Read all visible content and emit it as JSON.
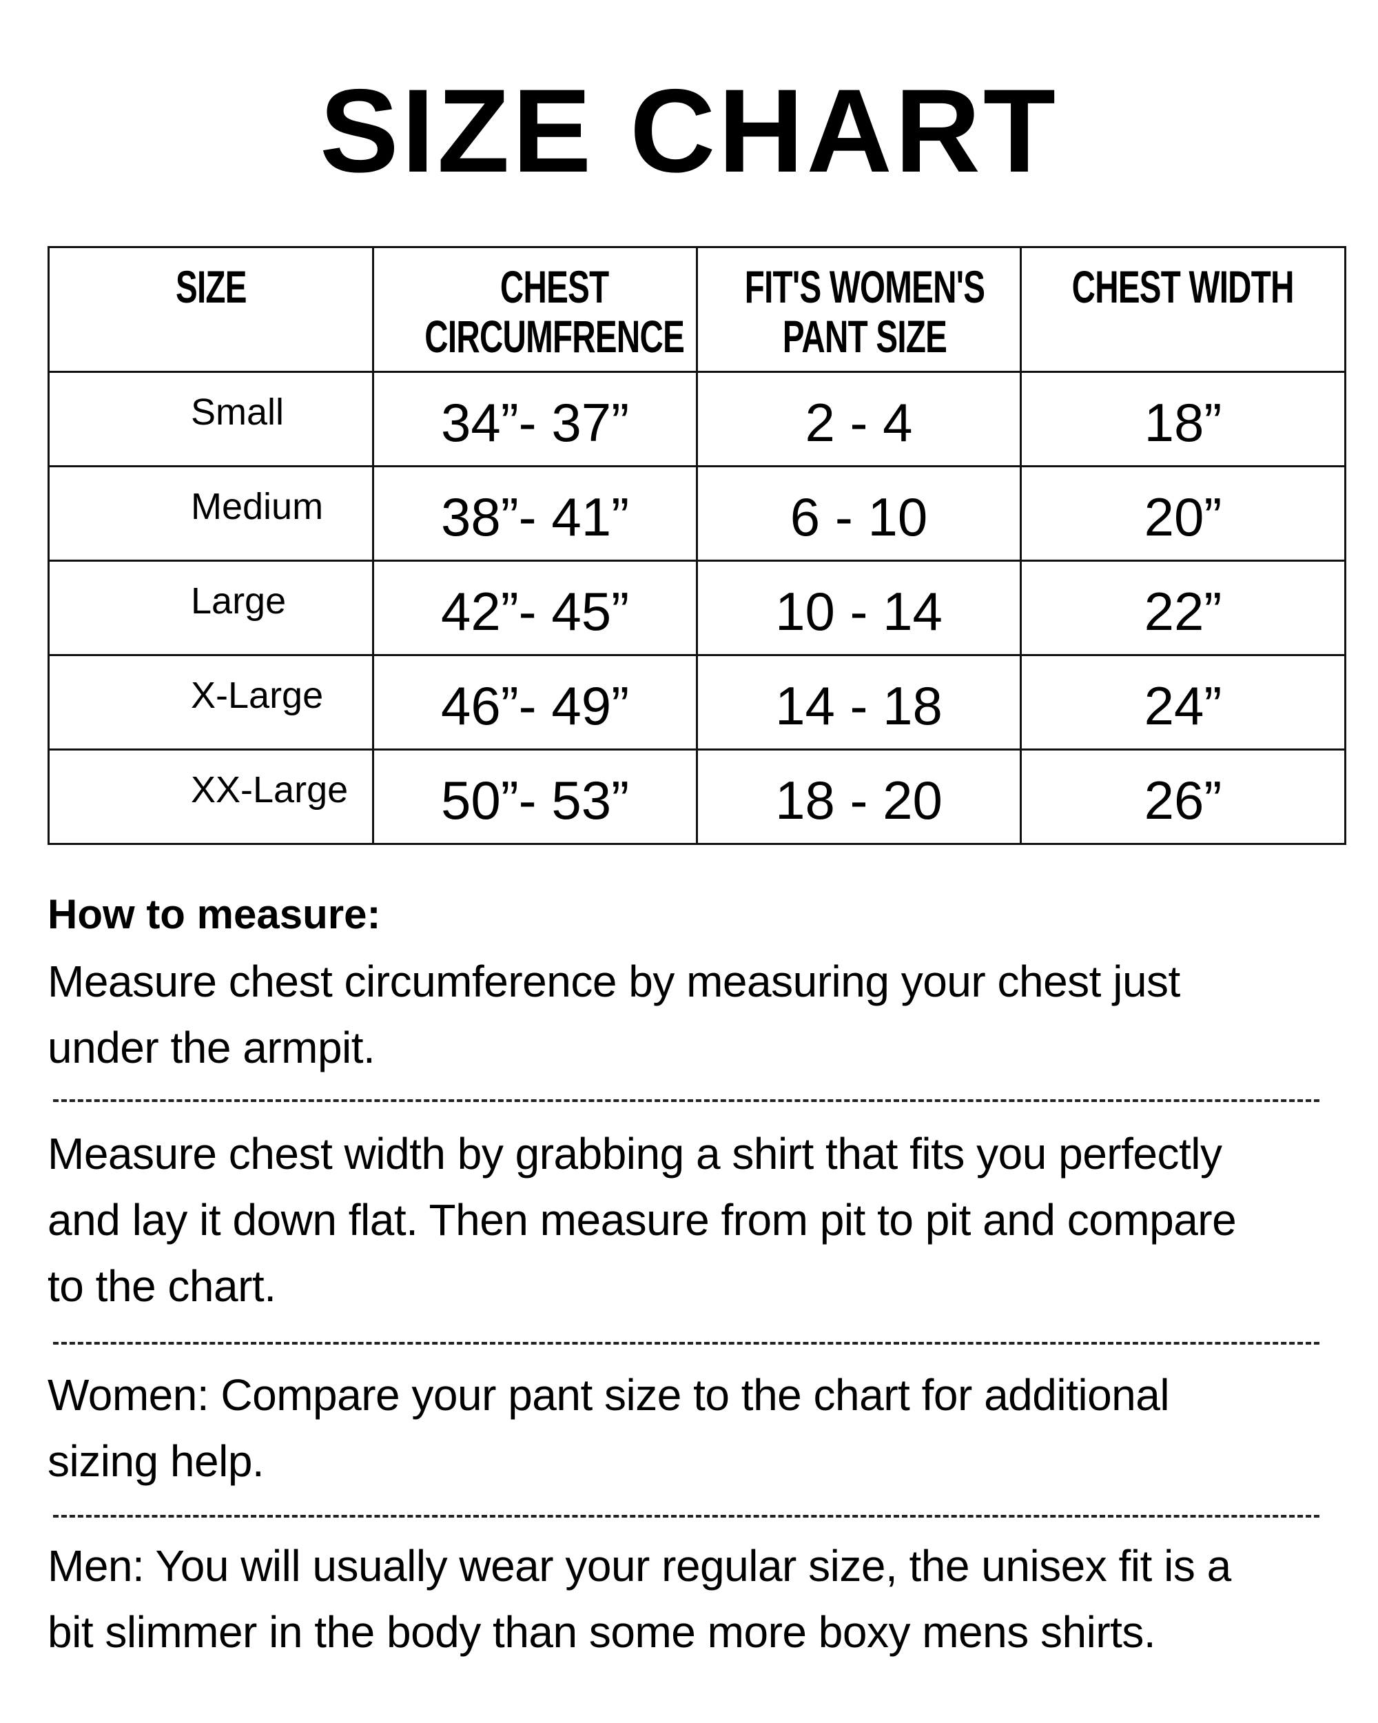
{
  "title": "SIZE CHART",
  "table": {
    "headers": [
      [
        "SIZE"
      ],
      [
        "CHEST",
        "CIRCUMFRENCE"
      ],
      [
        "FIT'S WOMEN'S",
        "PANT SIZE"
      ],
      [
        "CHEST WIDTH"
      ]
    ],
    "rows": [
      [
        "Small",
        "34”- 37”",
        "2 - 4",
        "18”"
      ],
      [
        "Medium",
        "38”- 41”",
        "6 - 10",
        "20”"
      ],
      [
        "Large",
        "42”- 45”",
        "10 - 14",
        "22”"
      ],
      [
        "X-Large",
        "46”- 49”",
        "14 - 18",
        "24”"
      ],
      [
        "XX-Large",
        "50”- 53”",
        "18 - 20",
        "26”"
      ]
    ]
  },
  "instructions": {
    "heading": "How to measure:",
    "paragraphs": [
      [
        "Measure chest circumference by measuring your chest just",
        "under the armpit."
      ],
      [
        "Measure chest width by grabbing a shirt that fits you perfectly",
        "and lay it down flat. Then measure from pit to pit and compare",
        "to the chart."
      ],
      [
        "Women: Compare your pant size to the chart for additional",
        "sizing help."
      ],
      [
        "Men: You will usually wear your regular size, the unisex fit is a",
        "bit slimmer in the body than some more boxy mens shirts."
      ]
    ]
  }
}
